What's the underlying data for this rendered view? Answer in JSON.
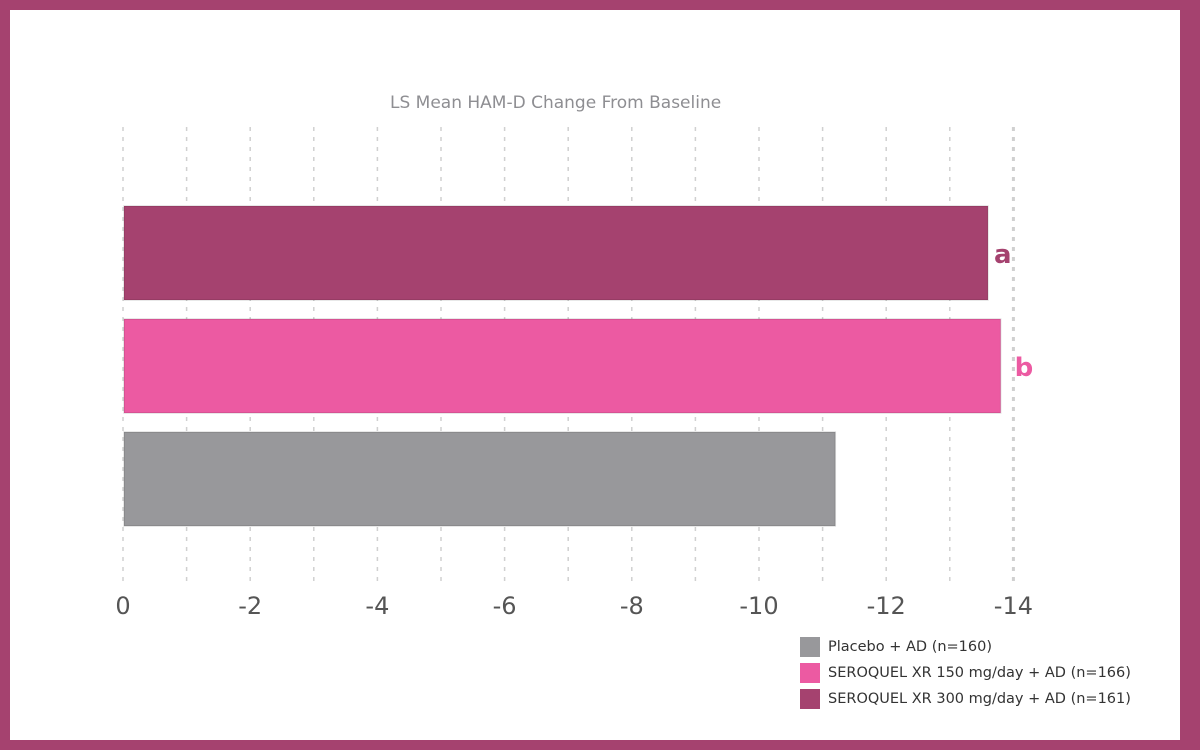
{
  "chart_data": {
    "type": "bar",
    "orientation": "horizontal",
    "title": "LS Mean HAM-D Change From Baseline",
    "xlabel": "",
    "ylabel": "",
    "xlim": [
      0,
      -14
    ],
    "x_ticks": [
      "0",
      "-2",
      "-4",
      "-6",
      "-8",
      "-10",
      "-12",
      "-14"
    ],
    "x_tick_values": [
      0,
      -2,
      -4,
      -6,
      -8,
      -10,
      -12,
      -14
    ],
    "grid": true,
    "legend_position": "bottom-right",
    "series": [
      {
        "name": "SEROQUEL XR 300 mg/day + AD (n=161)",
        "value": -13.6,
        "color": "#a5426f",
        "annotation": "a"
      },
      {
        "name": "SEROQUEL XR 150 mg/day + AD (n=166)",
        "value": -13.8,
        "color": "#ec5aa2",
        "annotation": "b"
      },
      {
        "name": "Placebo + AD (n=160)",
        "value": -11.2,
        "color": "#98989b",
        "annotation": ""
      }
    ],
    "legend": [
      {
        "label": "Placebo + AD (n=160)",
        "color": "#98989b"
      },
      {
        "label": "SEROQUEL XR 150 mg/day + AD (n=166)",
        "color": "#ec5aa2"
      },
      {
        "label": "SEROQUEL XR 300 mg/day + AD (n=161)",
        "color": "#a5426f"
      }
    ]
  }
}
